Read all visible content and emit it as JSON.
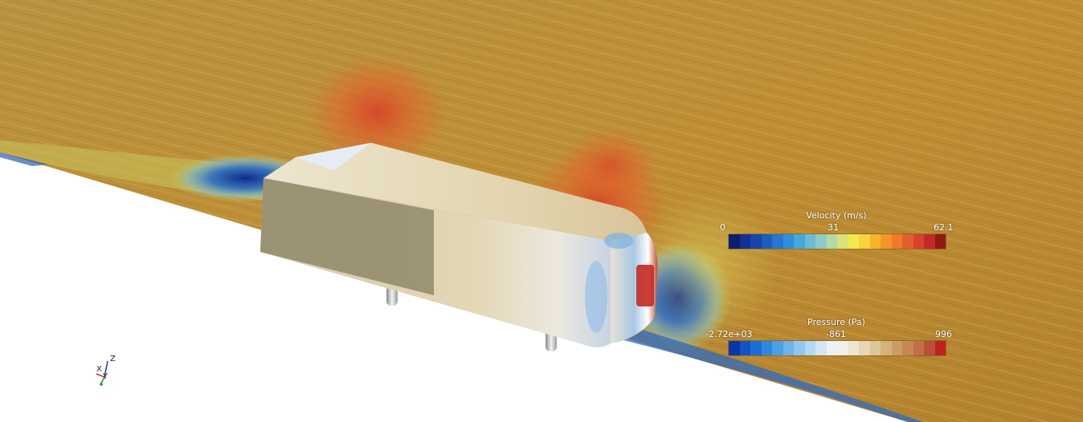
{
  "legends": {
    "velocity": {
      "title": "Velocity (m/s)",
      "min": "0",
      "mid": "31",
      "max": "62.1",
      "colors": [
        "#0c1f6e",
        "#11338f",
        "#1746a8",
        "#1e5cc0",
        "#2577cf",
        "#2f8fd8",
        "#48a7dc",
        "#6abbd8",
        "#8fcbc5",
        "#b5d9a4",
        "#d8e47a",
        "#f3e84f",
        "#f8d23a",
        "#f7b32e",
        "#f3952a",
        "#ee7a2a",
        "#e35e2a",
        "#d6432a",
        "#c22a26",
        "#8e1a14"
      ]
    },
    "pressure": {
      "title": "Pressure (Pa)",
      "min": "-2.72e+03",
      "mid": "-861",
      "max": "996",
      "colors": [
        "#0a37a8",
        "#1154c4",
        "#1a6fd6",
        "#2f88de",
        "#4d9fe3",
        "#6eb4e8",
        "#92c7ee",
        "#b4d8f2",
        "#d2e6f5",
        "#ebf1f4",
        "#f4efe6",
        "#eee4d0",
        "#e6d6b6",
        "#dcc59a",
        "#d4b27e",
        "#cd9c66",
        "#c88656",
        "#c26e48",
        "#b8503a",
        "#c21f1f"
      ]
    }
  },
  "axes": {
    "x": "X",
    "y": "Y",
    "z": "Z"
  }
}
